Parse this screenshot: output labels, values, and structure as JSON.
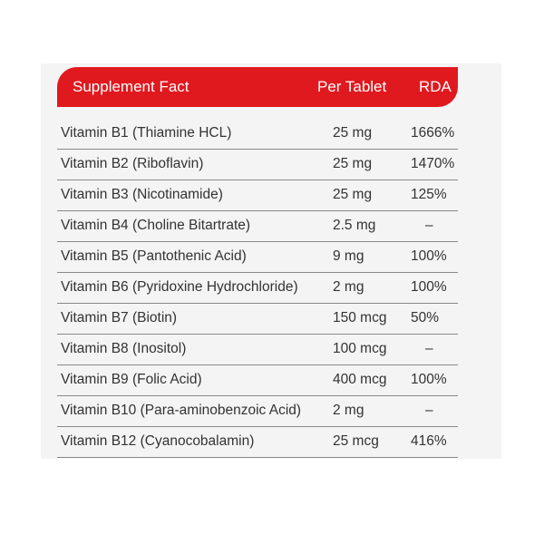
{
  "header": {
    "title": "Supplement Fact",
    "per_tablet": "Per Tablet",
    "rda": "RDA"
  },
  "table": {
    "rows": [
      [
        "Vitamin B1 (Thiamine HCL)",
        "25 mg",
        "1666%"
      ],
      [
        "Vitamin B2 (Riboflavin)",
        "25 mg",
        "1470%"
      ],
      [
        "Vitamin B3 (Nicotinamide)",
        "25 mg",
        "125%"
      ],
      [
        "Vitamin B4 (Choline Bitartrate)",
        "2.5 mg",
        "–"
      ],
      [
        "Vitamin B5 (Pantothenic Acid)",
        "9 mg",
        "100%"
      ],
      [
        "Vitamin B6 (Pyridoxine Hydrochloride)",
        "2 mg",
        "100%"
      ],
      [
        "Vitamin B7 (Biotin)",
        "150 mcg",
        "50%"
      ],
      [
        "Vitamin B8 (Inositol)",
        "100 mcg",
        "–"
      ],
      [
        "Vitamin B9 (Folic Acid)",
        "400 mcg",
        "100%"
      ],
      [
        "Vitamin B10 (Para-aminobenzoic Acid)",
        "2 mg",
        "–"
      ],
      [
        "Vitamin B12 (Cyanocobalamin)",
        "25 mcg",
        "416%"
      ]
    ]
  }
}
